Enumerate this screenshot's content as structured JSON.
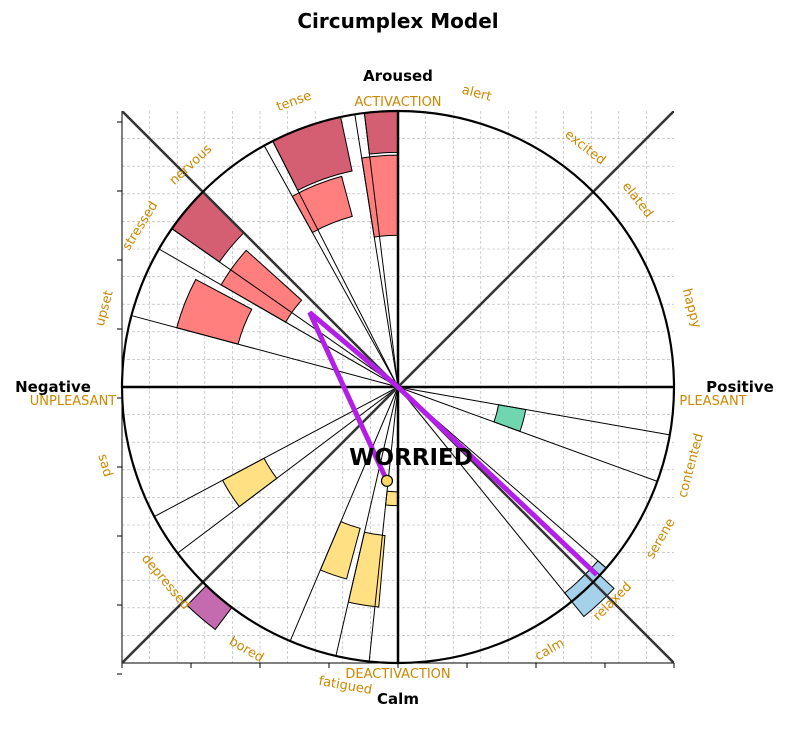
{
  "chart_data": {
    "type": "polar-bar",
    "title": "Circumplex Model",
    "axis_labels": {
      "top": "Aroused",
      "bottom": "Calm",
      "left": "Negative",
      "right": "Positive"
    },
    "axis_sublabels": {
      "top": "ACTIVACTION",
      "bottom": "DEACTIVACTION",
      "left": "UNPLEASANT",
      "right": "PLEASANT"
    },
    "emotion_labels": [
      {
        "name": "alert",
        "angle": 75
      },
      {
        "name": "excited",
        "angle": 52
      },
      {
        "name": "elated",
        "angle": 38
      },
      {
        "name": "happy",
        "angle": 15
      },
      {
        "name": "contented",
        "angle": -15
      },
      {
        "name": "serene",
        "angle": -30
      },
      {
        "name": "relaxed",
        "angle": -45
      },
      {
        "name": "calm",
        "angle": -60
      },
      {
        "name": "fatigued",
        "angle": -100
      },
      {
        "name": "bored",
        "angle": -120
      },
      {
        "name": "depressed",
        "angle": -140
      },
      {
        "name": "sad",
        "angle": -165
      },
      {
        "name": "upset",
        "angle": 165
      },
      {
        "name": "stressed",
        "angle": 148
      },
      {
        "name": "nervous",
        "angle": 133
      },
      {
        "name": "tense",
        "angle": 110
      }
    ],
    "wedges": [
      {
        "start": 90,
        "end": 97,
        "inner": 0.85,
        "outer": 1.0,
        "color": "#d45f72"
      },
      {
        "start": 90,
        "end": 99,
        "inner": 0.55,
        "outer": 0.84,
        "color": "#ff7f7f"
      },
      {
        "start": 102,
        "end": 117,
        "inner": 0.8,
        "outer": 1.0,
        "color": "#d45f72"
      },
      {
        "start": 105,
        "end": 119,
        "inner": 0.64,
        "outer": 0.79,
        "color": "#ff7f7f"
      },
      {
        "start": 135,
        "end": 145,
        "inner": 0.79,
        "outer": 1.0,
        "color": "#d45f72"
      },
      {
        "start": 138,
        "end": 150,
        "inner": 0.47,
        "outer": 0.74,
        "color": "#ff7f7f"
      },
      {
        "start": 152,
        "end": 165,
        "inner": 0.6,
        "outer": 0.83,
        "color": "#ff7f7f"
      },
      {
        "start": -20,
        "end": -10,
        "inner": 0.37,
        "outer": 0.47,
        "color": "#6fd6b0"
      },
      {
        "start": -47,
        "end": -41,
        "inner": 0.96,
        "outer": 1.0,
        "color": "#a6d1ea"
      },
      {
        "start": -51,
        "end": -43,
        "inner": 0.96,
        "outer": 1.07,
        "color": "#a6d1ea"
      },
      {
        "start": -96,
        "end": -90,
        "inner": 0.38,
        "outer": 0.43,
        "color": "#ffe184"
      },
      {
        "start": -103,
        "end": -95,
        "inner": 0.54,
        "outer": 0.8,
        "color": "#ffe184"
      },
      {
        "start": -113,
        "end": -105,
        "inner": 0.53,
        "outer": 0.72,
        "color": "#ffe184"
      },
      {
        "start": -152,
        "end": -143,
        "inner": 0.55,
        "outer": 0.72,
        "color": "#ffe184"
      },
      {
        "start": -134,
        "end": -127,
        "inner": 1.0,
        "outer": 1.1,
        "color": "#c46aae"
      }
    ],
    "spokes": [
      97,
      99,
      117,
      119,
      145,
      150,
      165,
      -20,
      -10,
      -41,
      -51,
      -96,
      -103,
      -113,
      -143,
      -152
    ],
    "current_mood": {
      "label": "WORRIED",
      "x": -0.04,
      "y": -0.34
    },
    "trajectory": [
      {
        "x": -0.04,
        "y": -0.34
      },
      {
        "x": -0.32,
        "y": 0.27
      },
      {
        "x": 0.0,
        "y": 0.0
      },
      {
        "x": 0.72,
        "y": -0.68
      }
    ],
    "xlim": [
      -1,
      1
    ],
    "ylim": [
      -1,
      1
    ],
    "grid": true,
    "colors": {
      "label_gold": "#cc8800",
      "trajectory": "#b31fe6",
      "marker": "#ffd966"
    }
  }
}
